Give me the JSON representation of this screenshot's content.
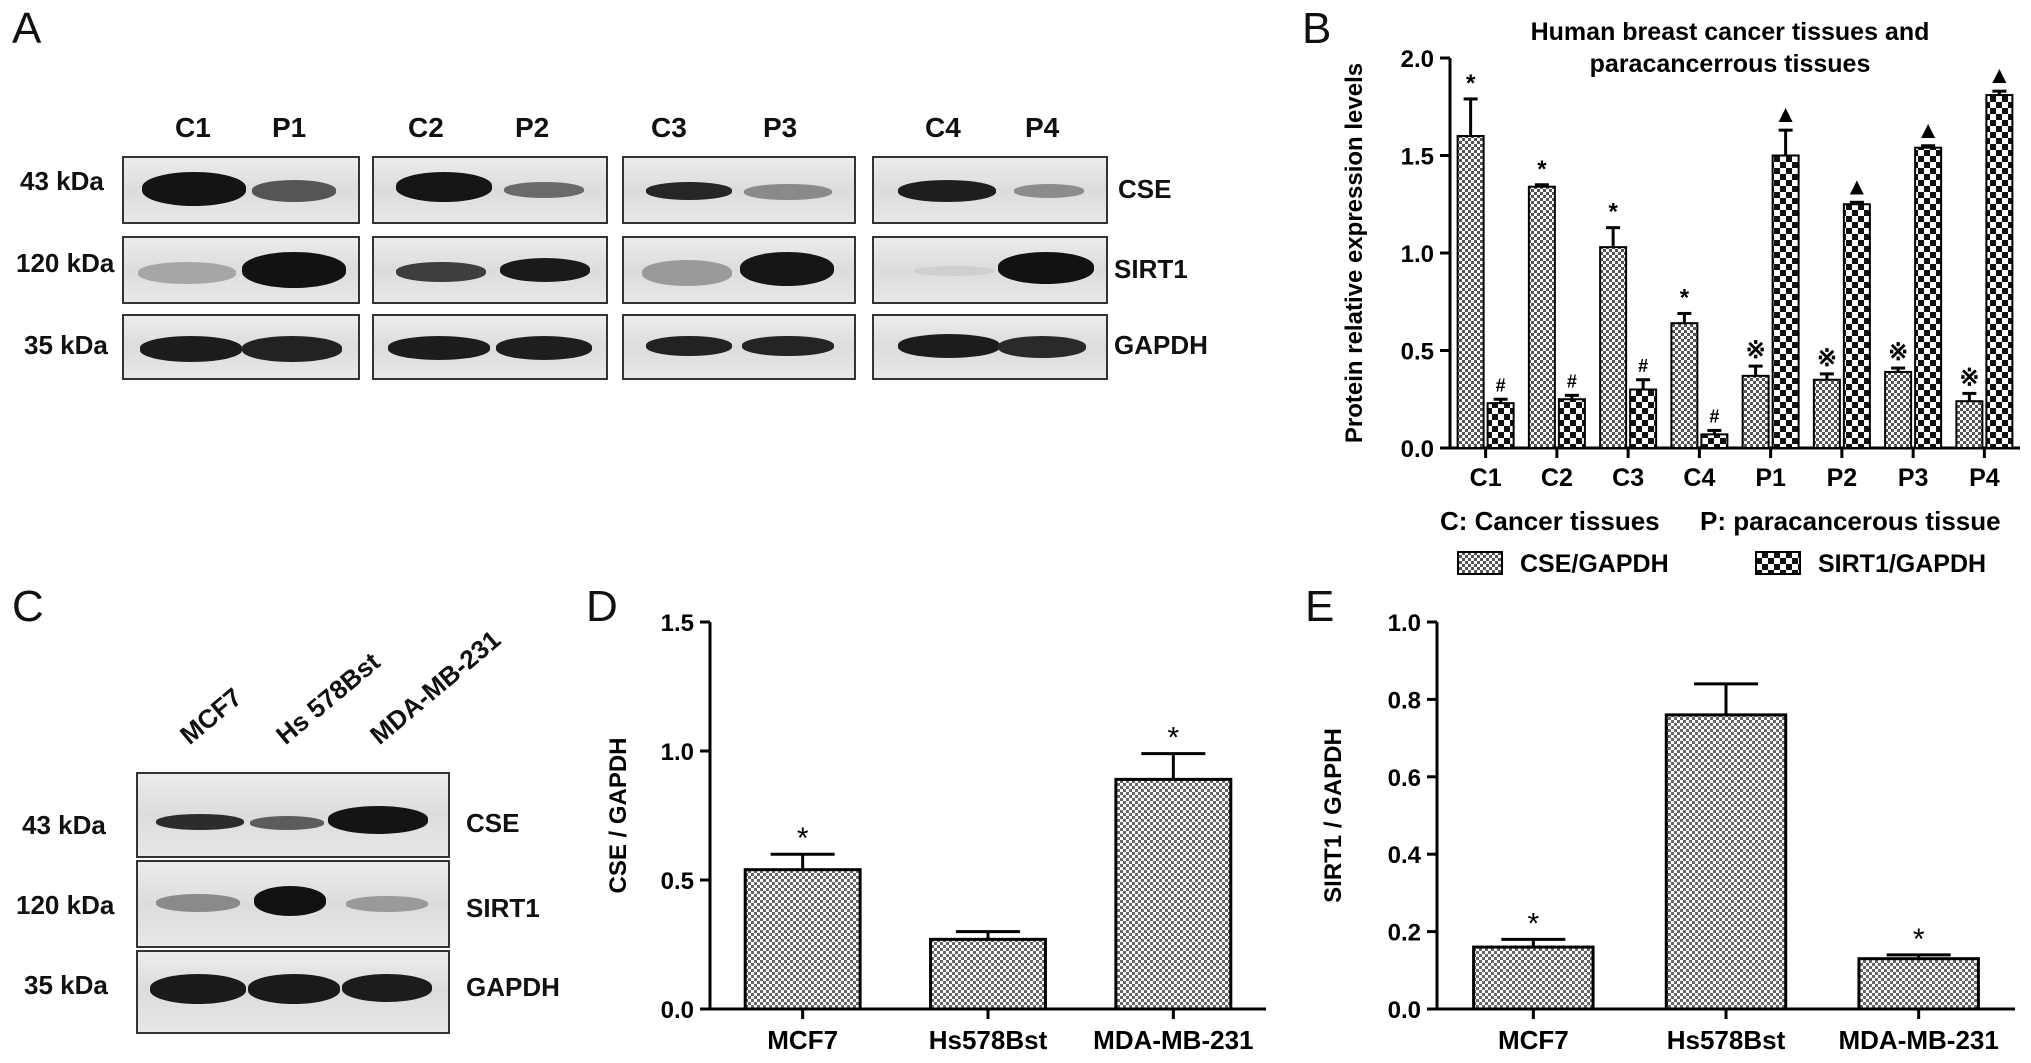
{
  "panels": {
    "a": "A",
    "b": "B",
    "c": "C",
    "d": "D",
    "e": "E"
  },
  "blot_a": {
    "groups": [
      {
        "lanes": [
          "C1",
          "P1"
        ]
      },
      {
        "lanes": [
          "C2",
          "P2"
        ]
      },
      {
        "lanes": [
          "C3",
          "P3"
        ]
      },
      {
        "lanes": [
          "C4",
          "P4"
        ]
      }
    ],
    "weights": [
      "43 kDa",
      "120 kDa",
      "35 kDa"
    ],
    "proteins": [
      "CSE",
      "SIRT1",
      "GAPDH"
    ]
  },
  "blot_c": {
    "lanes": [
      "MCF7",
      "Hs 578Bst",
      "MDA-MB-231"
    ],
    "weights": [
      "43 kDa",
      "120 kDa",
      "35 kDa"
    ],
    "proteins": [
      "CSE",
      "SIRT1",
      "GAPDH"
    ]
  },
  "chart_data": [
    {
      "type": "bar",
      "panel": "B",
      "title": "Human breast cancer tissues and paracancerrous tissues",
      "title_lines": [
        "Human breast cancer tissues and",
        "paracancerrous tissues"
      ],
      "ylabel": "Protein relative expression levels",
      "xlabel": "",
      "ylim": [
        0,
        2.0
      ],
      "yticks": [
        "0.0",
        "0.5",
        "1.0",
        "1.5",
        "2.0"
      ],
      "categories": [
        "C1",
        "C2",
        "C3",
        "C4",
        "P1",
        "P2",
        "P3",
        "P4"
      ],
      "caption": {
        "left": "C: Cancer tissues",
        "right": "P: paracancerous tissue"
      },
      "legend_position": "bottom",
      "series": [
        {
          "name": "CSE/GAPDH",
          "values": [
            1.6,
            1.34,
            1.03,
            0.64,
            0.37,
            0.35,
            0.39,
            0.24
          ],
          "errors": [
            0.19,
            0.01,
            0.1,
            0.05,
            0.05,
            0.03,
            0.02,
            0.04
          ],
          "marks": [
            "*",
            "*",
            "*",
            "*",
            "※",
            "※",
            "※",
            "※"
          ]
        },
        {
          "name": "SIRT1/GAPDH",
          "values": [
            0.23,
            0.25,
            0.3,
            0.07,
            1.5,
            1.25,
            1.54,
            1.81
          ],
          "errors": [
            0.02,
            0.02,
            0.05,
            0.02,
            0.13,
            0.01,
            0.01,
            0.02
          ],
          "marks": [
            "#",
            "#",
            "#",
            "#",
            "▲",
            "▲",
            "▲",
            "▲"
          ]
        }
      ]
    },
    {
      "type": "bar",
      "panel": "D",
      "title": "",
      "ylabel": "CSE / GAPDH",
      "xlabel": "",
      "ylim": [
        0,
        1.5
      ],
      "yticks": [
        "0.0",
        "0.5",
        "1.0",
        "1.5"
      ],
      "categories": [
        "MCF7",
        "Hs578Bst",
        "MDA-MB-231"
      ],
      "values": [
        0.54,
        0.27,
        0.89
      ],
      "errors": [
        0.06,
        0.03,
        0.1
      ],
      "marks": [
        "*",
        "",
        "*"
      ]
    },
    {
      "type": "bar",
      "panel": "E",
      "title": "",
      "ylabel": "SIRT1 / GAPDH",
      "xlabel": "",
      "ylim": [
        0,
        1.0
      ],
      "yticks": [
        "0.0",
        "0.2",
        "0.4",
        "0.6",
        "0.8",
        "1.0"
      ],
      "categories": [
        "MCF7",
        "Hs578Bst",
        "MDA-MB-231"
      ],
      "values": [
        0.16,
        0.76,
        0.13
      ],
      "errors": [
        0.02,
        0.08,
        0.01
      ],
      "marks": [
        "*",
        "",
        "*"
      ]
    }
  ]
}
